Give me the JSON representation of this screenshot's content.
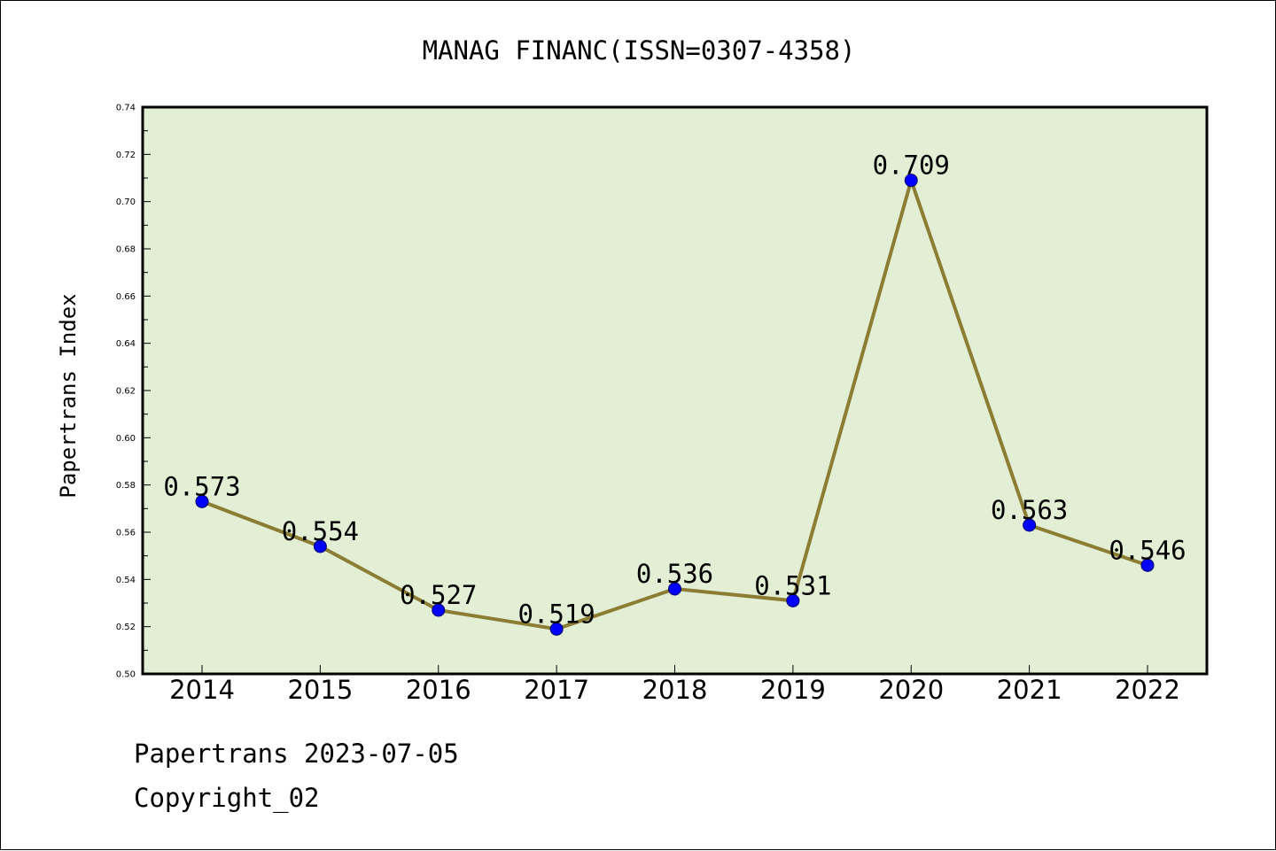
{
  "chart_data": {
    "type": "line",
    "title": "MANAG FINANC(ISSN=0307-4358)",
    "xlabel": "",
    "ylabel": "Papertrans Index",
    "categories": [
      "2014",
      "2015",
      "2016",
      "2017",
      "2018",
      "2019",
      "2020",
      "2021",
      "2022"
    ],
    "series": [
      {
        "values": [
          0.573,
          0.554,
          0.527,
          0.519,
          0.536,
          0.531,
          0.709,
          0.563,
          0.546
        ]
      }
    ],
    "data_labels": [
      "0.573",
      "0.554",
      "0.527",
      "0.519",
      "0.536",
      "0.531",
      "0.709",
      "0.563",
      "0.546"
    ],
    "ylim": [
      0.5,
      0.74
    ],
    "yticks": [
      "0.50",
      "0.52",
      "0.54",
      "0.56",
      "0.58",
      "0.60",
      "0.62",
      "0.64",
      "0.66",
      "0.68",
      "0.70",
      "0.72",
      "0.74"
    ],
    "grid": false,
    "legend": "none",
    "colors": {
      "plot_background": "#e2efd4",
      "line": "#8b7d33",
      "marker": "#0000ff"
    }
  },
  "footer": {
    "source": "Papertrans 2023-07-05",
    "copyright": "Copyright_02"
  }
}
